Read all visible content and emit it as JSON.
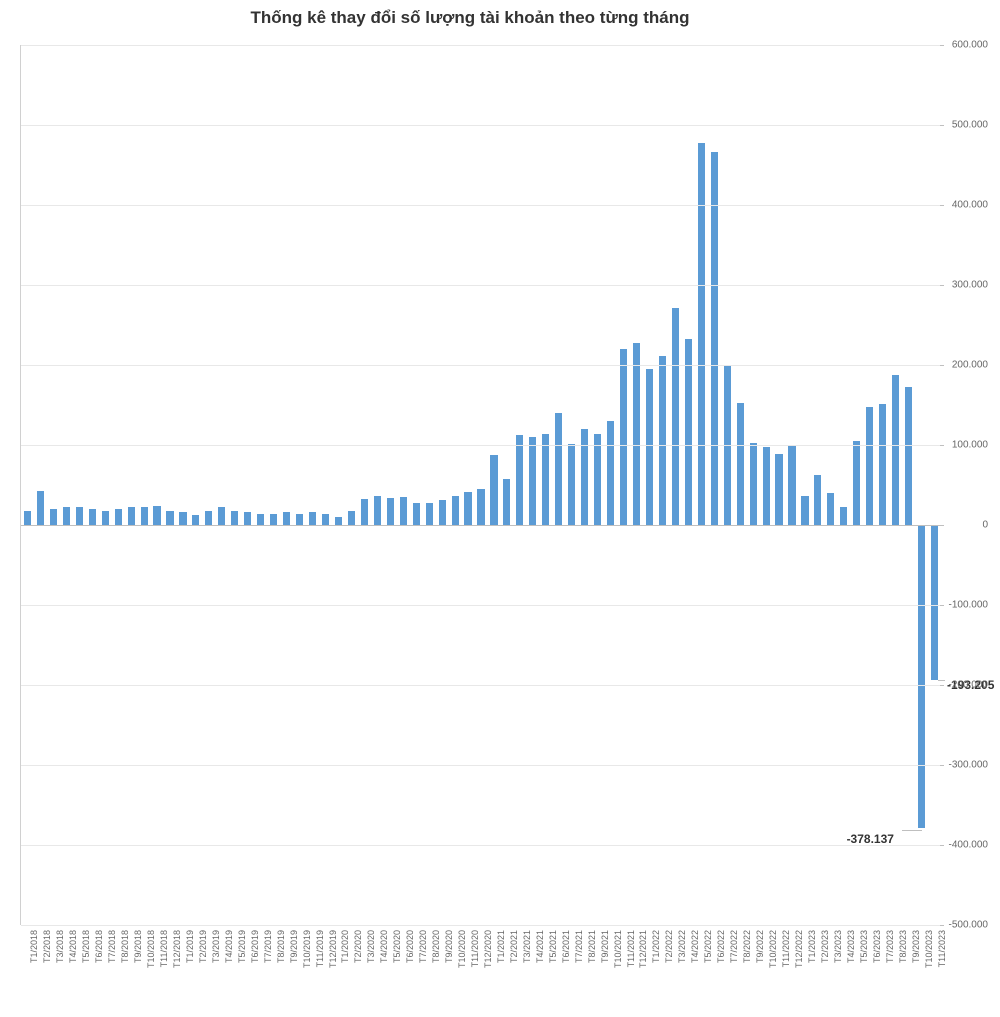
{
  "chart": {
    "type": "bar",
    "title": "Thống kê thay đổi số lượng tài khoản theo từng tháng",
    "title_fontsize": 17,
    "title_fontweight": "bold",
    "background_color": "#ffffff",
    "grid_color": "#e8e8e8",
    "axis_color": "#d0d0d0",
    "bar_color": "#5b9bd5",
    "ylim": [
      -500000,
      600000
    ],
    "ytick_step": 100000,
    "y_tick_labels": [
      "-500.000",
      "-400.000",
      "-300.000",
      "-200.000",
      "-100.000",
      "0",
      "100.000",
      "200.000",
      "300.000",
      "400.000",
      "500.000",
      "600.000"
    ],
    "y_tick_values": [
      -500000,
      -400000,
      -300000,
      -200000,
      -100000,
      0,
      100000,
      200000,
      300000,
      400000,
      500000,
      600000
    ],
    "label_fontsize": 10,
    "xlabel_fontsize": 9,
    "bar_width_ratio": 0.55,
    "categories": [
      "T1/2018",
      "T2/2018",
      "T3/2018",
      "T4/2018",
      "T5/2018",
      "T6/2018",
      "T7/2018",
      "T8/2018",
      "T9/2018",
      "T10/2018",
      "T11/2018",
      "T12/2018",
      "T1/2019",
      "T2/2019",
      "T3/2019",
      "T4/2019",
      "T5/2019",
      "T6/2019",
      "T7/2019",
      "T8/2019",
      "T9/2019",
      "T10/2019",
      "T11/2019",
      "T12/2019",
      "T1/2020",
      "T2/2020",
      "T3/2020",
      "T4/2020",
      "T5/2020",
      "T6/2020",
      "T7/2020",
      "T8/2020",
      "T9/2020",
      "T10/2020",
      "T11/2020",
      "T12/2020",
      "T1/2021",
      "T2/2021",
      "T3/2021",
      "T4/2021",
      "T5/2021",
      "T6/2021",
      "T7/2021",
      "T8/2021",
      "T9/2021",
      "T10/2021",
      "T11/2021",
      "T12/2021",
      "T1/2022",
      "T2/2022",
      "T3/2022",
      "T4/2022",
      "T5/2022",
      "T6/2022",
      "T7/2022",
      "T8/2022",
      "T9/2022",
      "T10/2022",
      "T11/2022",
      "T12/2022",
      "T1/2023",
      "T2/2023",
      "T3/2023",
      "T4/2023",
      "T5/2023",
      "T6/2023",
      "T7/2023",
      "T8/2023",
      "T9/2023",
      "T10/2023",
      "T11/2023"
    ],
    "values": [
      18000,
      42000,
      20000,
      22000,
      22000,
      20000,
      18000,
      20000,
      22000,
      22000,
      24000,
      18000,
      16000,
      12000,
      18000,
      22000,
      18000,
      16000,
      14000,
      14000,
      16000,
      14000,
      16000,
      14000,
      10000,
      18000,
      32000,
      36000,
      34000,
      35000,
      27000,
      28000,
      31000,
      36000,
      41000,
      45000,
      87000,
      57000,
      113000,
      110000,
      114000,
      140000,
      101000,
      120000,
      114000,
      130000,
      220000,
      227000,
      195000,
      211000,
      271000,
      232000,
      477000,
      466000,
      199000,
      153000,
      102000,
      97000,
      89000,
      99000,
      36000,
      63000,
      40000,
      22000,
      105000,
      147000,
      151000,
      188000,
      173000,
      -378137,
      -193205
    ],
    "data_labels": [
      {
        "index": 69,
        "text": "-378.137",
        "position": "below-left"
      },
      {
        "index": 70,
        "text": "-193.205",
        "position": "right"
      }
    ]
  }
}
